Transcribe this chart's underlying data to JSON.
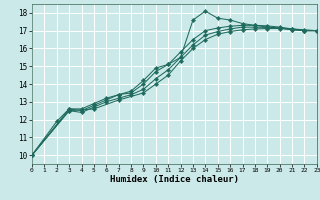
{
  "xlabel": "Humidex (Indice chaleur)",
  "xlim": [
    0,
    23
  ],
  "ylim": [
    9.5,
    18.5
  ],
  "yticks": [
    10,
    11,
    12,
    13,
    14,
    15,
    16,
    17,
    18
  ],
  "xticks": [
    0,
    1,
    2,
    3,
    4,
    5,
    6,
    7,
    8,
    9,
    10,
    11,
    12,
    13,
    14,
    15,
    16,
    17,
    18,
    19,
    20,
    21,
    22,
    23
  ],
  "background_color": "#cce9e9",
  "grid_color": "#ffffff",
  "line_color": "#1f6b5e",
  "curves": [
    {
      "x": [
        0,
        2,
        3,
        4,
        5,
        6,
        7,
        8,
        9,
        10,
        11,
        12,
        13,
        14,
        15,
        16,
        17,
        18,
        19,
        20,
        21,
        22,
        23
      ],
      "y": [
        10.0,
        11.9,
        12.6,
        12.6,
        12.9,
        13.2,
        13.4,
        13.6,
        14.2,
        14.9,
        15.1,
        15.5,
        17.6,
        18.1,
        17.7,
        17.6,
        17.4,
        17.3,
        17.2,
        17.15,
        17.05,
        17.0,
        17.0
      ]
    },
    {
      "x": [
        0,
        3,
        4,
        5,
        6,
        7,
        8,
        9,
        10,
        11,
        12,
        13,
        14,
        15,
        16,
        17,
        18,
        19,
        20,
        21,
        22,
        23
      ],
      "y": [
        10.0,
        12.6,
        12.5,
        12.8,
        13.1,
        13.4,
        13.5,
        14.0,
        14.7,
        15.1,
        15.8,
        16.5,
        17.0,
        17.15,
        17.25,
        17.3,
        17.3,
        17.27,
        17.2,
        17.1,
        17.0,
        17.0
      ]
    },
    {
      "x": [
        0,
        3,
        4,
        5,
        6,
        7,
        8,
        9,
        10,
        11,
        12,
        13,
        14,
        15,
        16,
        17,
        18,
        19,
        20,
        21,
        22,
        23
      ],
      "y": [
        10.0,
        12.5,
        12.4,
        12.7,
        13.0,
        13.2,
        13.4,
        13.7,
        14.3,
        14.8,
        15.5,
        16.2,
        16.75,
        16.95,
        17.1,
        17.2,
        17.2,
        17.18,
        17.15,
        17.05,
        17.0,
        17.0
      ]
    },
    {
      "x": [
        0,
        3,
        5,
        7,
        9,
        10,
        11,
        12,
        13,
        14,
        15,
        16,
        17,
        18,
        19,
        20,
        21,
        22,
        23
      ],
      "y": [
        10.0,
        12.5,
        12.6,
        13.1,
        13.5,
        14.0,
        14.5,
        15.3,
        16.0,
        16.5,
        16.8,
        16.95,
        17.05,
        17.1,
        17.12,
        17.12,
        17.1,
        17.05,
        17.0
      ]
    }
  ]
}
